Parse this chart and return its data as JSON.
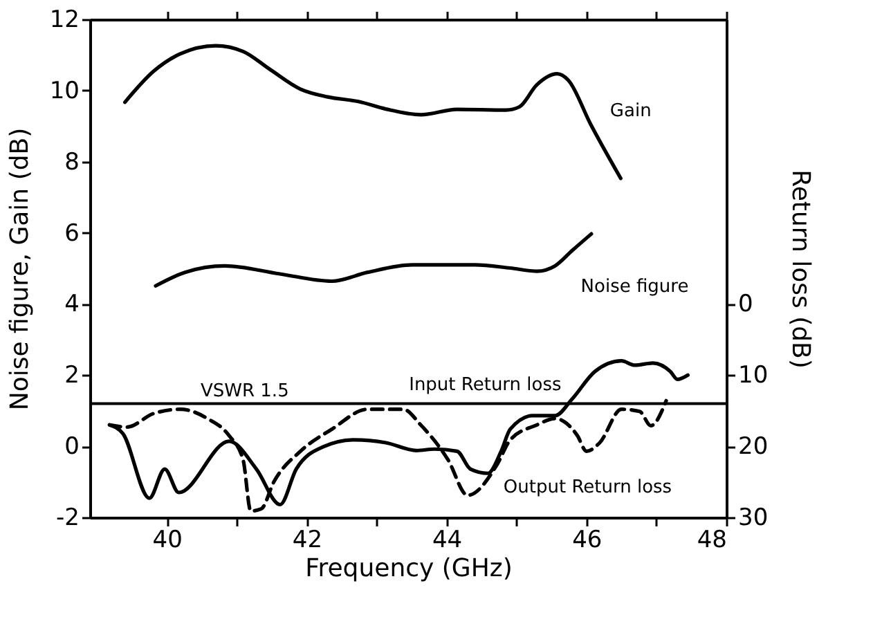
{
  "chart_data": {
    "type": "line",
    "xlabel": "Frequency  (GHz)",
    "ylabel": "Noise  figure,  Gain  (dB)",
    "y2label": "Return  loss  (dB)",
    "xlim": [
      38.9,
      48
    ],
    "xticks": [
      40,
      {
        "value": 41,
        "label": null
      },
      42,
      {
        "value": 43,
        "label": null
      },
      44,
      {
        "value": 45,
        "label": null
      },
      46,
      {
        "value": 47,
        "label": null
      },
      48
    ],
    "ylim": [
      -2,
      12
    ],
    "yticks": [
      -2,
      0,
      2,
      4,
      6,
      8,
      10,
      12
    ],
    "y2lim": [
      30,
      -40
    ],
    "y2ticks": [
      0,
      10,
      20,
      30
    ],
    "grid": false,
    "legend": false,
    "marker": "none",
    "ref_lines": [
      {
        "axis": "y2",
        "value": 14,
        "label": "VSWR 1.5",
        "color": "#000000",
        "line_style": "solid"
      }
    ],
    "series": [
      {
        "name": "Gain",
        "color": "#000000",
        "line_style": "solid",
        "x": [
          39.4,
          39.81,
          40.19,
          40.7,
          41.09,
          41.47,
          41.91,
          42.3,
          42.74,
          43.13,
          43.63,
          44.15,
          44.85,
          45.04,
          45.29,
          45.58,
          45.74,
          46.06,
          46.49
        ],
        "values": [
          9.67,
          10.54,
          11.03,
          11.26,
          11.1,
          10.6,
          10.04,
          9.82,
          9.69,
          9.48,
          9.32,
          9.47,
          9.45,
          9.54,
          10.16,
          10.47,
          10.29,
          9.05,
          7.53
        ]
      },
      {
        "name": "Noise figure",
        "color": "#000000",
        "line_style": "solid",
        "x": [
          39.84,
          40.26,
          40.83,
          41.6,
          42.36,
          42.87,
          43.51,
          44.4,
          44.91,
          45.29,
          45.55,
          45.8,
          46.07
        ],
        "values": [
          4.51,
          4.89,
          5.07,
          4.85,
          4.64,
          4.89,
          5.1,
          5.1,
          5.01,
          4.92,
          5.07,
          5.51,
          5.97
        ]
      },
      {
        "name": "Input Return loss",
        "color": "#000000",
        "line_style": "solid",
        "axis": "y2",
        "x": [
          39.18,
          39.37,
          39.75,
          39.97,
          40.17,
          40.89,
          41.28,
          41.62,
          41.85,
          42.23,
          42.68,
          43.13,
          43.57,
          43.83,
          44.15,
          44.34,
          44.59,
          44.78,
          44.91,
          45.23,
          45.55,
          45.8,
          46.12,
          46.5,
          46.69,
          46.95,
          47.2,
          47.3,
          47.45
        ],
        "values": [
          17.0,
          18.2,
          27.3,
          23.2,
          26.5,
          19.3,
          23.2,
          28.2,
          23.2,
          20.1,
          19.1,
          19.5,
          20.6,
          20.4,
          20.7,
          23.2,
          23.8,
          20.7,
          17.6,
          15.7,
          15.7,
          13.3,
          9.5,
          8.0,
          8.6,
          8.3,
          9.5,
          10.6,
          10.0
        ]
      },
      {
        "name": "Output Return loss",
        "color": "#000000",
        "line_style": "dashed",
        "axis": "y2",
        "x": [
          39.18,
          39.43,
          39.81,
          40.19,
          40.58,
          40.89,
          41.09,
          41.2,
          41.35,
          41.53,
          41.91,
          42.36,
          42.87,
          43.38,
          43.63,
          44.02,
          44.3,
          44.72,
          44.91,
          45.29,
          45.55,
          45.87,
          46.0,
          46.19,
          46.5,
          46.76,
          46.92,
          47.14
        ],
        "values": [
          17.0,
          17.3,
          15.4,
          14.8,
          16.1,
          18.5,
          21.9,
          29.1,
          28.8,
          25.0,
          20.7,
          17.6,
          14.8,
          14.8,
          17.0,
          21.9,
          26.9,
          22.6,
          19.1,
          17.0,
          16.1,
          18.5,
          20.7,
          19.5,
          14.8,
          15.1,
          17.1,
          13.6
        ]
      }
    ]
  }
}
